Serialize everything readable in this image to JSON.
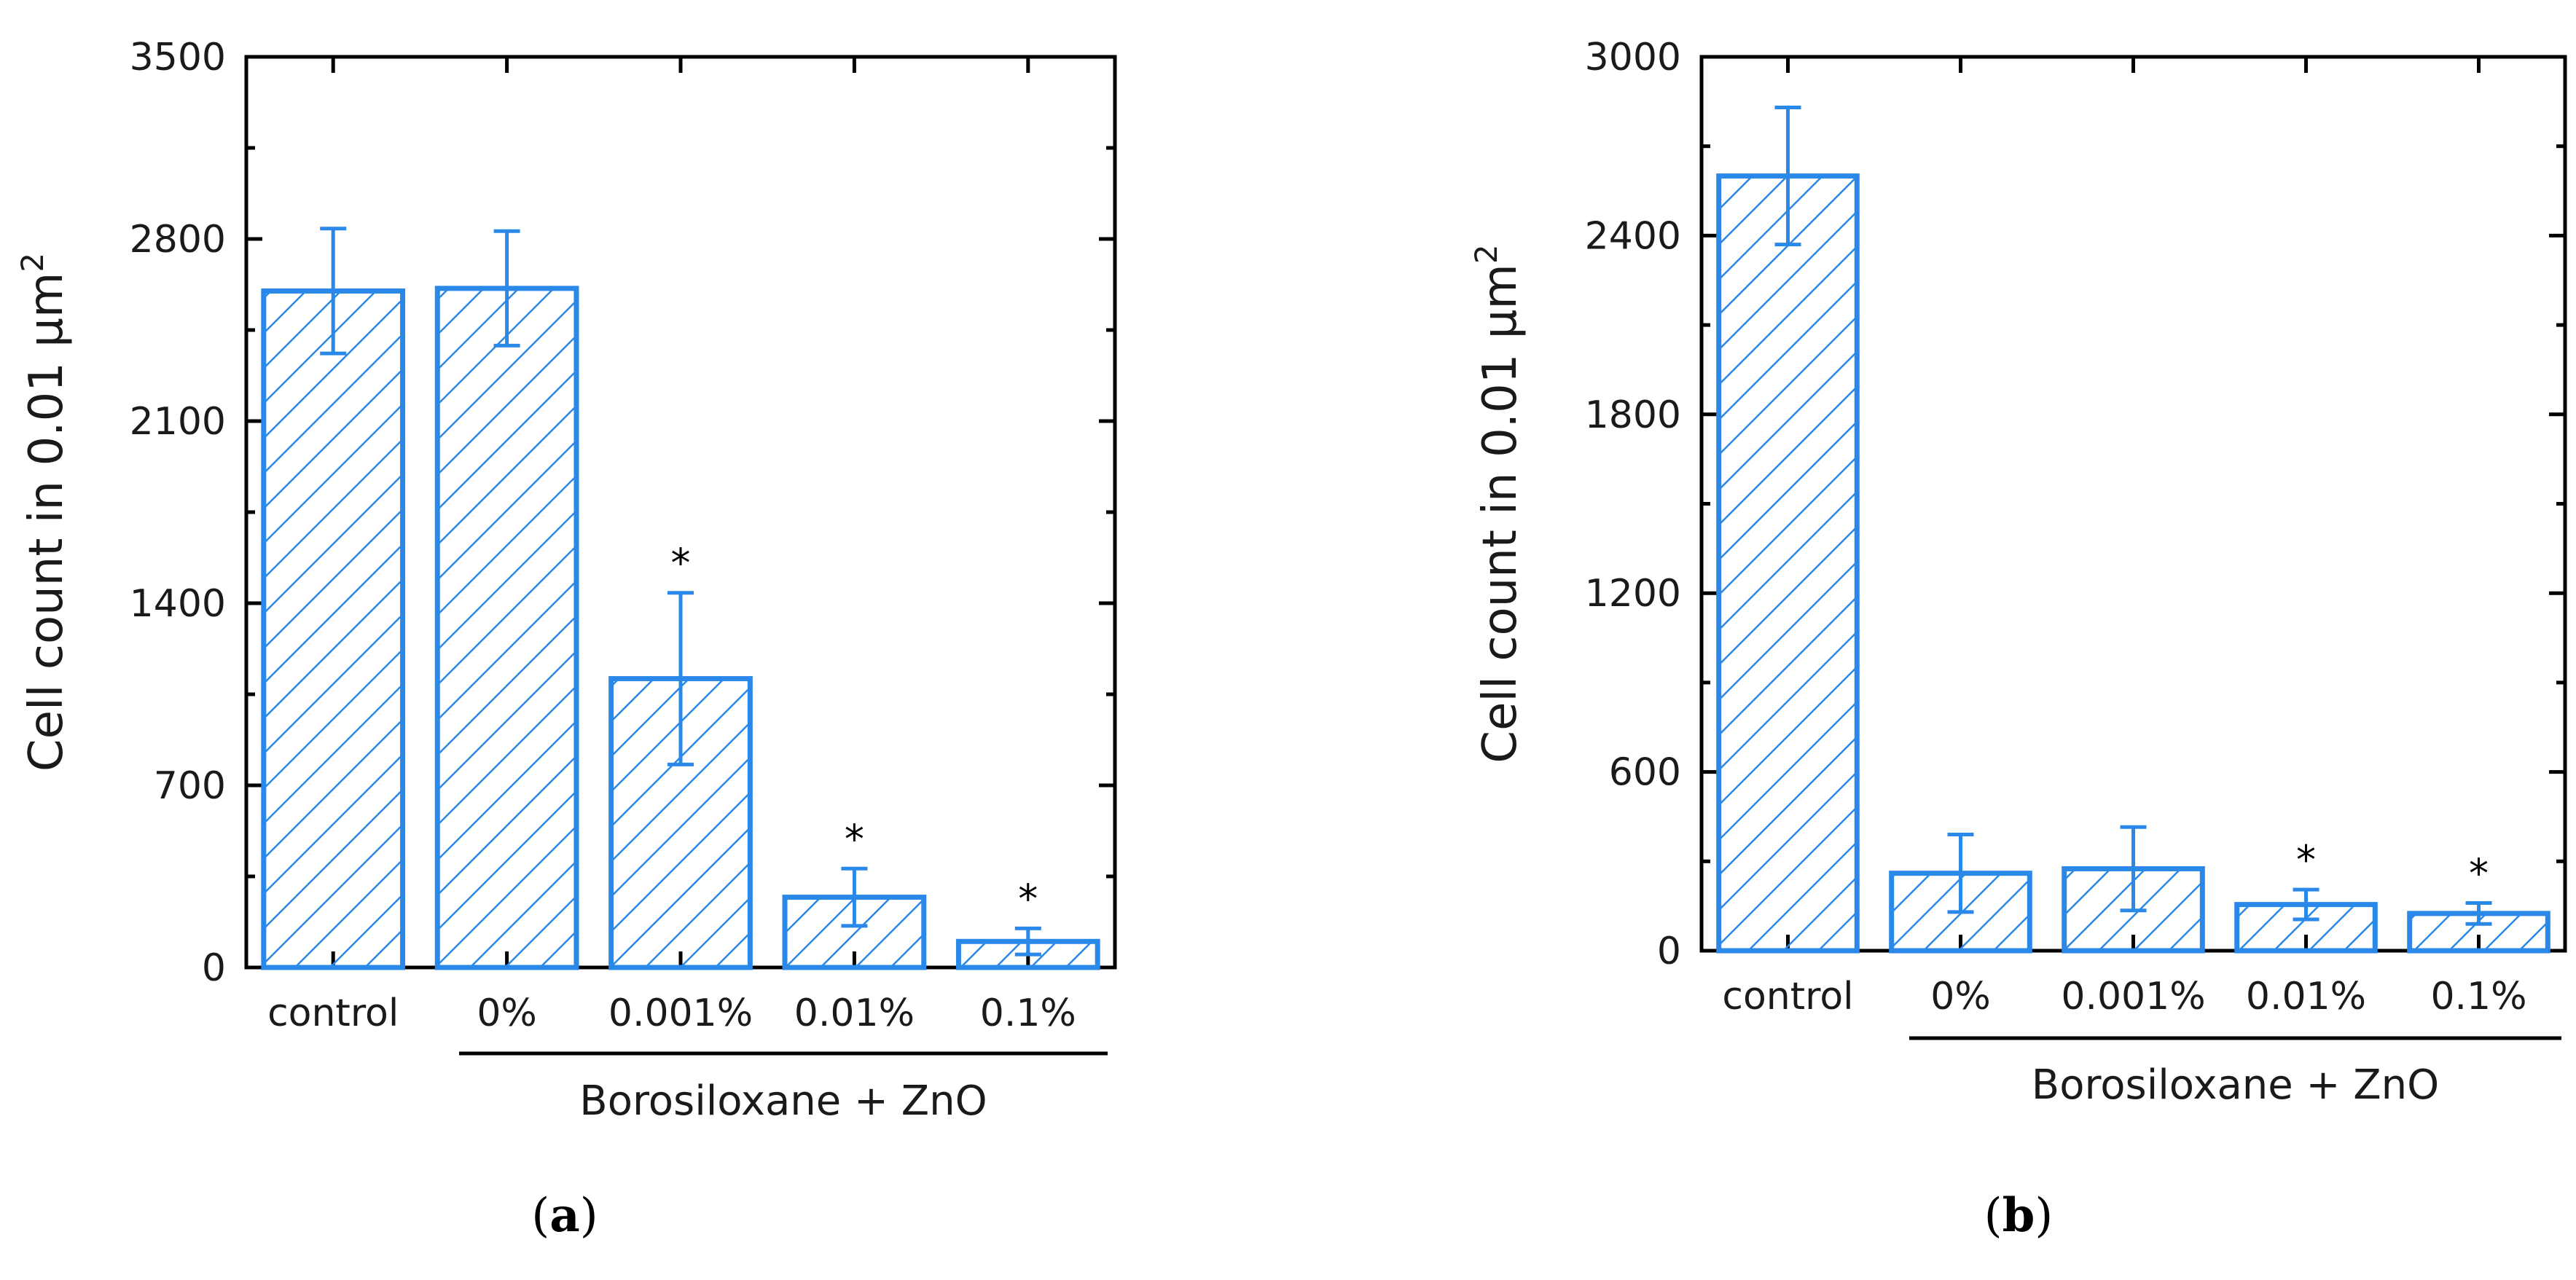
{
  "colors": {
    "bar": "#2a88e8",
    "axis": "#000000",
    "text": "#1a1a1a"
  },
  "chart_data": [
    {
      "type": "bar",
      "panel_label": "a",
      "ylabel": "Cell count in 0.01 μm",
      "ylabel_superscript": "2",
      "ylim": [
        0,
        3500
      ],
      "yticks": [
        "0",
        "700",
        "1400",
        "2100",
        "2800",
        "3500"
      ],
      "categories": [
        "control",
        "0%",
        "0.001%",
        "0.01%",
        "0.1%"
      ],
      "values": [
        2600,
        2610,
        1110,
        270,
        100
      ],
      "errors": [
        240,
        220,
        330,
        110,
        50
      ],
      "significant": [
        "",
        "",
        "*",
        "*",
        "*"
      ],
      "group_label": "Borosiloxane + ZnO",
      "group_categories": [
        "0%",
        "0.001%",
        "0.01%",
        "0.1%"
      ]
    },
    {
      "type": "bar",
      "panel_label": "b",
      "ylabel": "Cell count in 0.01 μm",
      "ylabel_superscript": "2",
      "ylim": [
        0,
        3000
      ],
      "yticks": [
        "0",
        "600",
        "1200",
        "1800",
        "2400",
        "3000"
      ],
      "categories": [
        "control",
        "0%",
        "0.001%",
        "0.01%",
        "0.1%"
      ],
      "values": [
        2600,
        260,
        275,
        155,
        125
      ],
      "errors": [
        230,
        130,
        140,
        50,
        35
      ],
      "significant": [
        "",
        "",
        "",
        "*",
        "*"
      ],
      "group_label": "Borosiloxane + ZnO",
      "group_categories": [
        "0%",
        "0.001%",
        "0.01%",
        "0.1%"
      ]
    }
  ]
}
